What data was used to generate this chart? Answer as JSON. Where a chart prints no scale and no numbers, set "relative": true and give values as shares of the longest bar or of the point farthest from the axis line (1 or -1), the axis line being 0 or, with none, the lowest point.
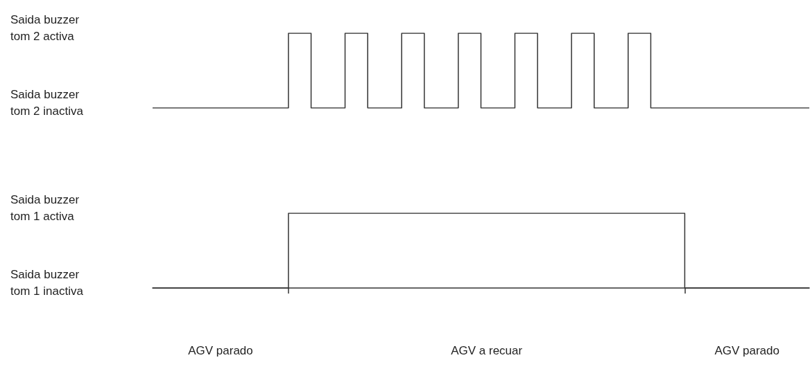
{
  "chart_data": [
    {
      "type": "step",
      "relative": true,
      "categories": [
        null,
        null,
        null,
        null,
        null,
        null,
        null,
        null,
        null,
        null,
        null,
        null,
        null,
        null,
        null,
        null,
        null,
        null,
        null,
        null,
        null,
        null,
        null,
        null,
        null,
        null,
        null,
        null,
        null,
        null,
        null,
        null,
        null,
        null,
        null,
        null,
        null,
        null,
        null,
        null,
        null,
        null,
        null,
        null,
        null,
        null,
        null,
        null,
        null,
        null,
        null,
        null,
        null,
        null,
        null,
        null,
        null,
        null,
        null
      ],
      "series": [
        {
          "color": "#333333",
          "values": [
            0,
            0,
            0,
            0,
            0,
            0,
            0,
            0,
            0,
            0,
            0,
            0,
            1,
            1,
            0,
            0,
            0,
            1,
            1,
            0,
            0,
            0,
            1,
            1,
            0,
            0,
            0,
            1,
            1,
            0,
            0,
            0,
            1,
            1,
            0,
            0,
            0,
            1,
            1,
            0,
            0,
            0,
            1,
            1,
            0,
            0,
            0,
            0,
            0,
            0,
            0,
            0,
            0,
            0,
            0,
            0,
            0,
            0,
            0
          ]
        }
      ],
      "tick_labels": false,
      "annotations": [
        "Saida buzzer\ntom 2 activa",
        "Saida buzzer\ntom 2 inactiva"
      ]
    },
    {
      "type": "step",
      "relative": true,
      "categories": [
        null,
        null,
        null,
        null,
        null,
        null,
        null,
        null,
        null,
        null,
        null,
        null,
        null,
        null,
        null,
        null,
        null,
        null,
        null,
        null,
        null,
        null,
        null,
        null,
        null,
        null,
        null,
        null,
        null,
        null,
        null,
        null,
        null,
        null,
        null,
        null,
        null,
        null,
        null,
        null,
        null,
        null,
        null,
        null,
        null,
        null,
        null,
        null,
        null,
        null,
        null,
        null,
        null,
        null,
        null,
        null,
        null,
        null,
        null
      ],
      "series": [
        {
          "color": "#333333",
          "values": [
            0,
            0,
            0,
            0,
            0,
            0,
            0,
            0,
            0,
            0,
            0,
            0,
            1,
            1,
            1,
            1,
            1,
            1,
            1,
            1,
            1,
            1,
            1,
            1,
            1,
            1,
            1,
            1,
            1,
            1,
            1,
            1,
            1,
            1,
            1,
            1,
            1,
            1,
            1,
            1,
            1,
            1,
            1,
            1,
            1,
            1,
            1,
            0,
            0,
            0,
            0,
            0,
            0,
            0,
            0,
            0,
            0,
            0,
            0
          ]
        }
      ],
      "tick_labels": false,
      "annotations": [
        "Saida buzzer\ntom 1 activa",
        "Saida buzzer\ntom 1 inactiva",
        "AGV parado",
        "AGV a recuar",
        "AGV parado"
      ]
    }
  ]
}
